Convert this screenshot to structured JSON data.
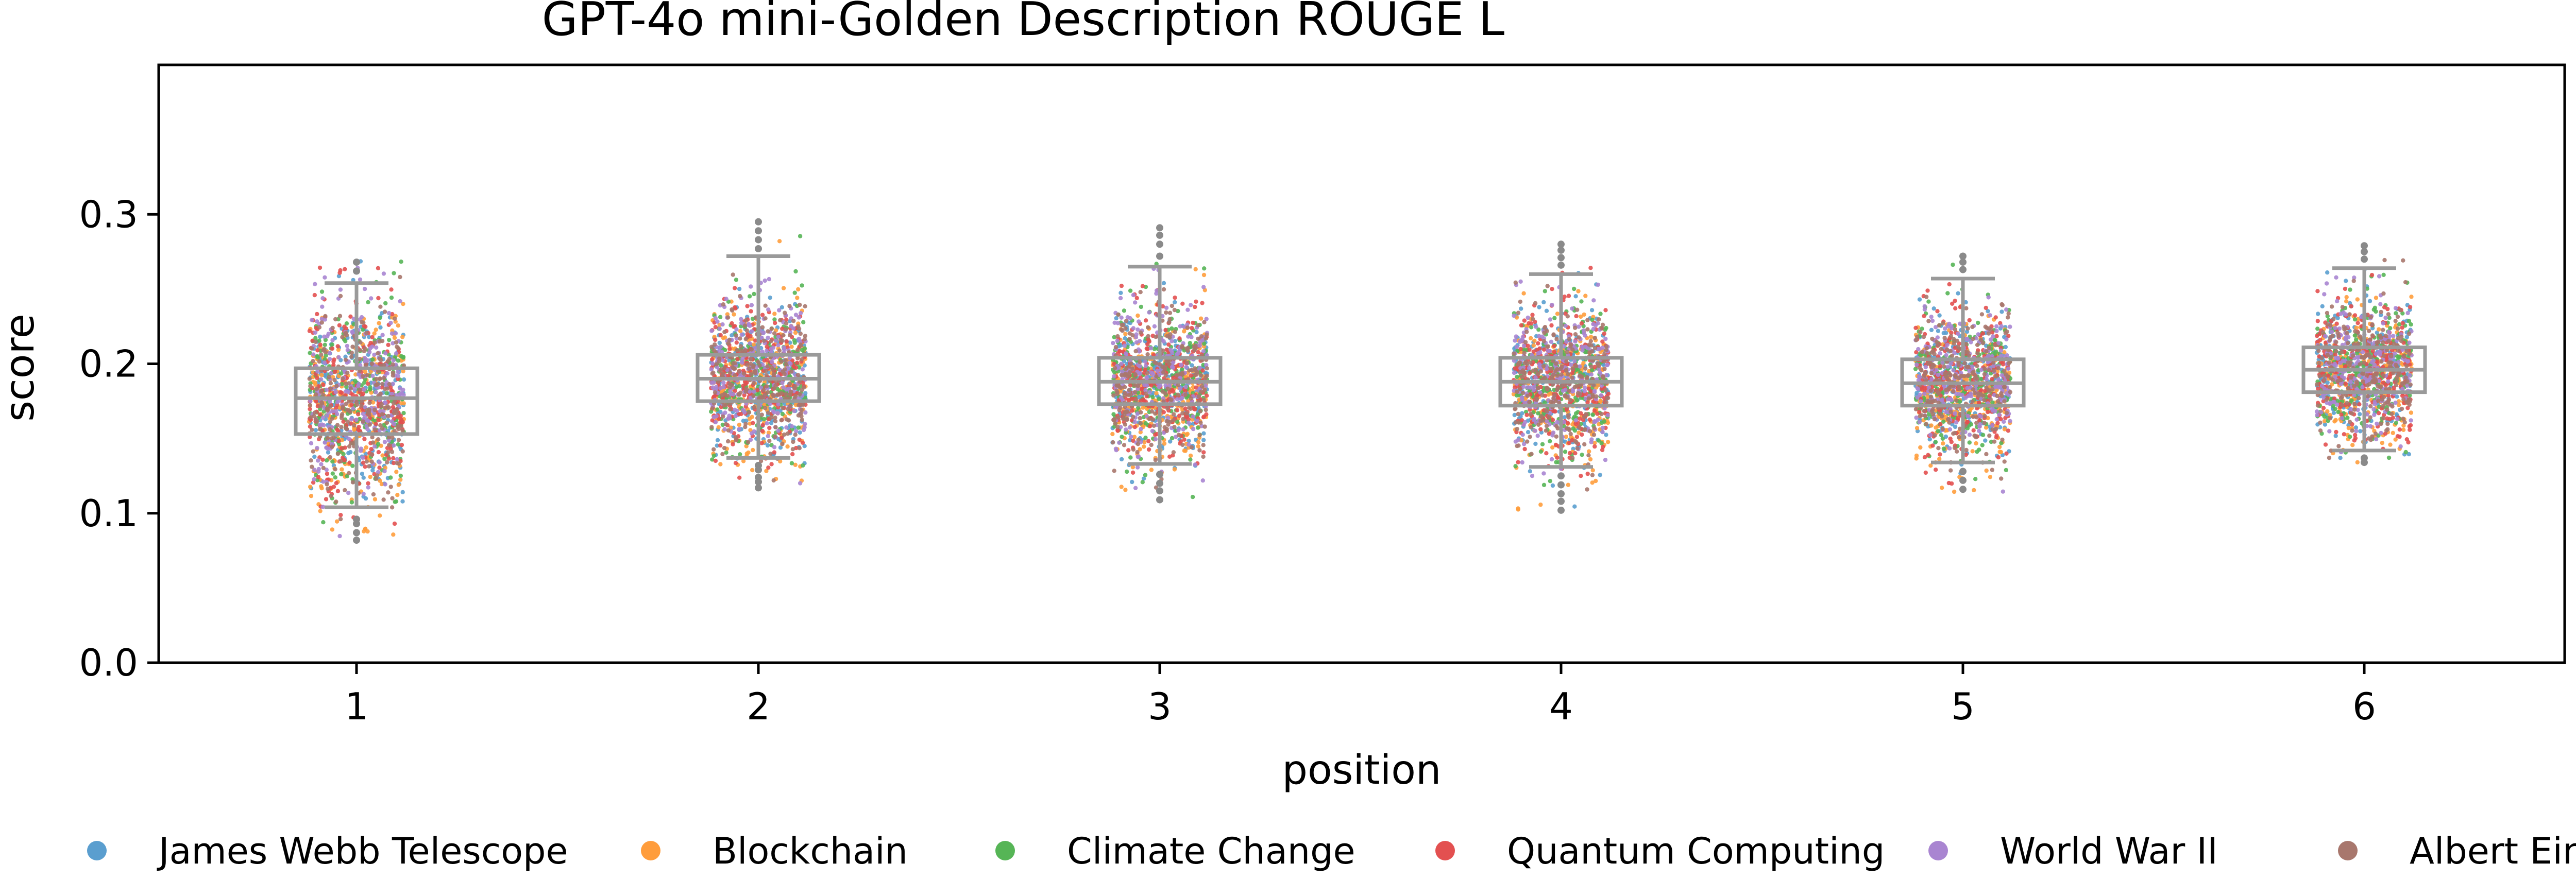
{
  "chart_data": {
    "type": "box_strip",
    "title": "GPT-4o mini-Golden Description ROUGE L",
    "xlabel": "position",
    "ylabel": "score",
    "categories": [
      "1",
      "2",
      "3",
      "4",
      "5",
      "6"
    ],
    "ylim": [
      0.0,
      0.4
    ],
    "yticks": [
      0.0,
      0.1,
      0.2,
      0.3
    ],
    "ytick_labels": [
      "0.0",
      "0.1",
      "0.2",
      "0.3"
    ],
    "grid": false,
    "legend": {
      "placement": "bottom",
      "entries": [
        "James Webb Telescope",
        "Blockchain",
        "Climate Change",
        "Quantum Computing",
        "World War II",
        "Albert Einstein"
      ]
    },
    "series": [
      {
        "name": "James Webb Telescope",
        "color": "#5a9ecf"
      },
      {
        "name": "Blockchain",
        "color": "#ff9d3c"
      },
      {
        "name": "Climate Change",
        "color": "#56b556"
      },
      {
        "name": "Quantum Computing",
        "color": "#e35050"
      },
      {
        "name": "World War II",
        "color": "#a985d1"
      },
      {
        "name": "Albert Einstein",
        "color": "#a8776d"
      }
    ],
    "boxes": [
      {
        "position": "1",
        "whisker_low": 0.104,
        "q1": 0.153,
        "median": 0.177,
        "q3": 0.197,
        "whisker_high": 0.254
      },
      {
        "position": "2",
        "whisker_low": 0.137,
        "q1": 0.175,
        "median": 0.19,
        "q3": 0.206,
        "whisker_high": 0.272
      },
      {
        "position": "3",
        "whisker_low": 0.133,
        "q1": 0.173,
        "median": 0.188,
        "q3": 0.204,
        "whisker_high": 0.265
      },
      {
        "position": "4",
        "whisker_low": 0.131,
        "q1": 0.172,
        "median": 0.188,
        "q3": 0.204,
        "whisker_high": 0.26
      },
      {
        "position": "5",
        "whisker_low": 0.134,
        "q1": 0.172,
        "median": 0.187,
        "q3": 0.203,
        "whisker_high": 0.257
      },
      {
        "position": "6",
        "whisker_low": 0.142,
        "q1": 0.181,
        "median": 0.196,
        "q3": 0.211,
        "whisker_high": 0.264
      }
    ],
    "outliers": [
      {
        "position": "1",
        "values": [
          0.096,
          0.093,
          0.087,
          0.082,
          0.262,
          0.268
        ]
      },
      {
        "position": "2",
        "values": [
          0.132,
          0.129,
          0.124,
          0.121,
          0.117,
          0.277,
          0.283,
          0.289,
          0.295
        ]
      },
      {
        "position": "3",
        "values": [
          0.126,
          0.12,
          0.115,
          0.109,
          0.272,
          0.28,
          0.286,
          0.291
        ]
      },
      {
        "position": "4",
        "values": [
          0.125,
          0.119,
          0.113,
          0.108,
          0.102,
          0.266,
          0.271,
          0.276,
          0.28
        ]
      },
      {
        "position": "5",
        "values": [
          0.128,
          0.122,
          0.116,
          0.263,
          0.268,
          0.272
        ]
      },
      {
        "position": "6",
        "values": [
          0.137,
          0.134,
          0.27,
          0.275,
          0.279
        ]
      }
    ],
    "strip_point_spread": [
      {
        "position": "1",
        "mean": 0.177,
        "sd": 0.033,
        "min": 0.08,
        "max": 0.27
      },
      {
        "position": "2",
        "mean": 0.19,
        "sd": 0.025,
        "min": 0.117,
        "max": 0.295
      },
      {
        "position": "3",
        "mean": 0.188,
        "sd": 0.025,
        "min": 0.108,
        "max": 0.292
      },
      {
        "position": "4",
        "mean": 0.188,
        "sd": 0.025,
        "min": 0.102,
        "max": 0.28
      },
      {
        "position": "5",
        "mean": 0.187,
        "sd": 0.024,
        "min": 0.114,
        "max": 0.272
      },
      {
        "position": "6",
        "mean": 0.196,
        "sd": 0.023,
        "min": 0.134,
        "max": 0.279
      }
    ]
  }
}
